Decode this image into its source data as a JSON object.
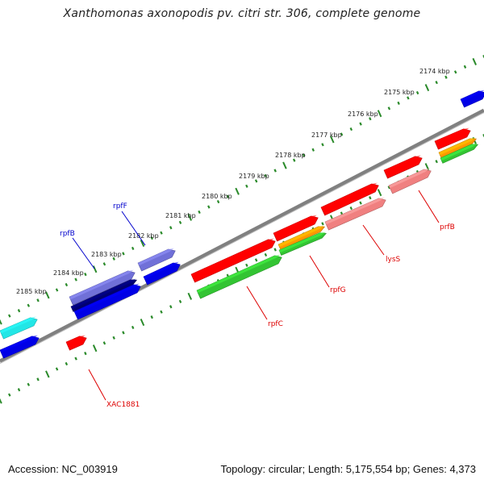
{
  "title": "Xanthomonas axonopodis pv. citri str. 306, complete genome",
  "footer": {
    "accession": "Accession: NC_003919",
    "topology": "Topology: circular; Length: 5,175,554 bp; Genes: 4,373"
  },
  "scale_labels": [
    "2174 kbp",
    "2175 kbp",
    "2176 kbp",
    "2177 kbp",
    "2178 kbp",
    "2179 kbp",
    "2180 kbp",
    "2181 kbp",
    "2182 kbp",
    "2183 kbp",
    "2184 kbp",
    "2185 kbp"
  ],
  "gene_labels": {
    "rpfF": "rpfF",
    "rpfB_blue": "rpfB",
    "rpfB_red": "prfB",
    "lysS": "lysS",
    "rpfG": "rpfG",
    "rpfC": "rpfC",
    "XAC1881": "XAC1881"
  },
  "colors": {
    "backbone": "#808080",
    "ticks": "#2a8a2a",
    "red": "#ff0000",
    "blue": "#0000e6",
    "cyan": "#22e6e6",
    "green": "#33c433",
    "orange": "#ff9900",
    "pink": "#f08080",
    "navy": "#000070",
    "slate": "#7070d8",
    "red_label": "#dd0000",
    "blue_label": "#0000cc"
  }
}
